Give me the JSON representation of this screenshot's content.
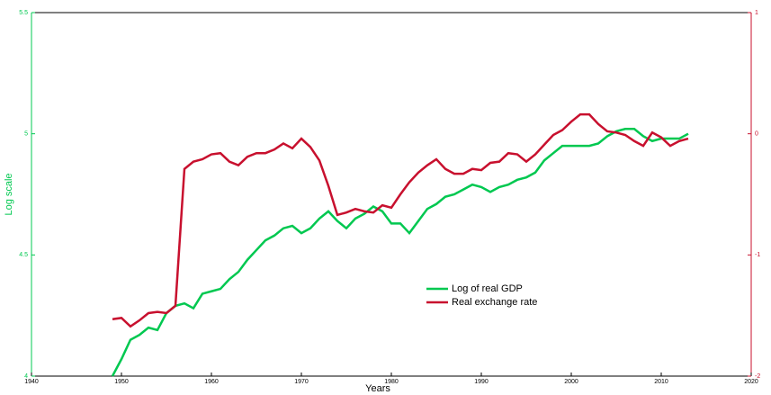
{
  "chart_data": {
    "type": "line",
    "x_label": "Years",
    "y_label": "Log scale",
    "x": [
      1949,
      1950,
      1951,
      1952,
      1953,
      1954,
      1955,
      1956,
      1957,
      1958,
      1959,
      1960,
      1961,
      1962,
      1963,
      1964,
      1965,
      1966,
      1967,
      1968,
      1969,
      1970,
      1971,
      1972,
      1973,
      1974,
      1975,
      1976,
      1977,
      1978,
      1979,
      1980,
      1981,
      1982,
      1983,
      1984,
      1985,
      1986,
      1987,
      1988,
      1989,
      1990,
      1991,
      1992,
      1993,
      1994,
      1995,
      1996,
      1997,
      1998,
      1999,
      2000,
      2001,
      2002,
      2003,
      2004,
      2005,
      2006,
      2007,
      2008,
      2009,
      2010,
      2011,
      2012,
      2013
    ],
    "series": [
      {
        "name": "Log of real GDP",
        "color": "#00c850",
        "values": [
          4.0,
          4.07,
          4.15,
          4.17,
          4.2,
          4.19,
          4.26,
          4.29,
          4.3,
          4.28,
          4.34,
          4.35,
          4.36,
          4.4,
          4.43,
          4.48,
          4.52,
          4.56,
          4.58,
          4.61,
          4.62,
          4.59,
          4.61,
          4.65,
          4.68,
          4.64,
          4.61,
          4.65,
          4.67,
          4.7,
          4.68,
          4.63,
          4.63,
          4.59,
          4.64,
          4.69,
          4.71,
          4.74,
          4.75,
          4.77,
          4.79,
          4.78,
          4.76,
          4.78,
          4.79,
          4.81,
          4.82,
          4.84,
          4.89,
          4.92,
          4.95,
          4.95,
          4.95,
          4.95,
          4.96,
          4.99,
          5.01,
          5.02,
          5.02,
          4.99,
          4.97,
          4.98,
          4.98,
          4.98,
          5.0
        ]
      },
      {
        "name": "Real exchange rate",
        "color": "#c8102e",
        "axis": "y2",
        "values": [
          -1.53,
          -1.52,
          -1.59,
          -1.54,
          -1.48,
          -1.47,
          -1.48,
          -1.42,
          -0.29,
          -0.23,
          -0.21,
          -0.17,
          -0.16,
          -0.23,
          -0.26,
          -0.19,
          -0.16,
          -0.16,
          -0.13,
          -0.08,
          -0.12,
          -0.04,
          -0.11,
          -0.22,
          -0.43,
          -0.67,
          -0.65,
          -0.62,
          -0.64,
          -0.65,
          -0.59,
          -0.61,
          -0.5,
          -0.4,
          -0.32,
          -0.26,
          -0.21,
          -0.29,
          -0.33,
          -0.33,
          -0.29,
          -0.3,
          -0.24,
          -0.23,
          -0.16,
          -0.17,
          -0.23,
          -0.17,
          -0.09,
          -0.01,
          0.03,
          0.1,
          0.16,
          0.16,
          0.08,
          0.02,
          0.01,
          -0.01,
          -0.06,
          -0.1,
          0.01,
          -0.03,
          -0.1,
          -0.06,
          -0.04
        ]
      }
    ],
    "xlim": [
      1940,
      2020
    ],
    "xticks": [
      1940,
      1950,
      1960,
      1970,
      1980,
      1990,
      2000,
      2010,
      2020
    ],
    "ylim": [
      4,
      5.5
    ],
    "yticks": [
      4,
      4.5,
      5,
      5.5
    ],
    "y2lim": [
      -2,
      1
    ],
    "y2ticks": [
      -2,
      -1,
      0,
      1
    ],
    "left_axis_color": "#00c850",
    "right_axis_color": "#c8102e"
  }
}
